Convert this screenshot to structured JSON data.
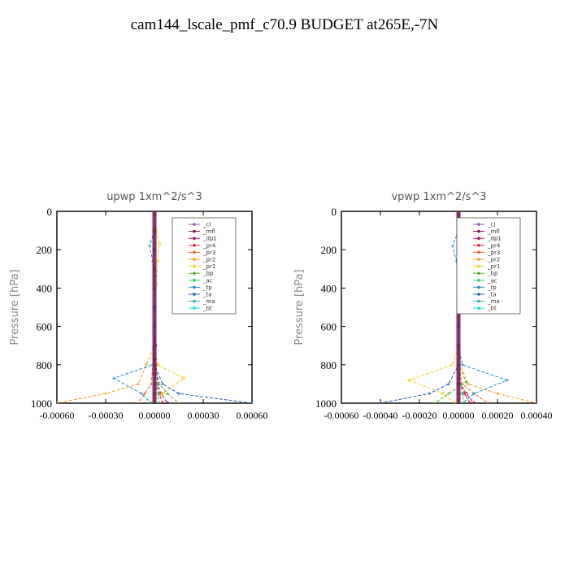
{
  "figure": {
    "title": "cam144_lscale_pmf_c70.9  BUDGET at265E,-7N"
  },
  "chart_data": [
    {
      "type": "line",
      "title": "upwp   1xm^2/s^3",
      "ylabel": "Pressure [hPa]",
      "xlabel": "",
      "xlim": [
        -0.0006,
        0.0006
      ],
      "ylim": [
        1000,
        0
      ],
      "xticks": [
        "-0.00060",
        "-0.00030",
        "0.00000",
        "0.00030",
        "0.00060"
      ],
      "xtick_values": [
        -0.0006,
        -0.0003,
        0,
        0.0003,
        0.0006
      ],
      "yticks": [
        "0",
        "200",
        "400",
        "600",
        "800",
        "1000"
      ],
      "ytick_values": [
        0,
        200,
        400,
        600,
        800,
        1000
      ],
      "legend_position": "top-right",
      "series": [
        {
          "name": "_cl",
          "color": "#8a5cc4",
          "marker": "circle",
          "x": [
            0,
            0,
            0,
            0,
            0,
            0,
            0,
            0,
            0,
            0,
            0,
            0
          ],
          "y": [
            0,
            100,
            200,
            300,
            400,
            500,
            600,
            700,
            800,
            900,
            950,
            1000
          ]
        },
        {
          "name": "_mfl",
          "color": "#7a1050",
          "marker": "star",
          "x": [
            0,
            0,
            0,
            0,
            0,
            0,
            0,
            0,
            0,
            0,
            0,
            0
          ],
          "y": [
            0,
            100,
            200,
            300,
            400,
            500,
            600,
            700,
            800,
            900,
            950,
            1000
          ]
        },
        {
          "name": "_dp1",
          "color": "#b0106a",
          "marker": "circle",
          "x": [
            0,
            0,
            0,
            0,
            0,
            0,
            0,
            5e-06,
            1e-05,
            2e-05,
            4e-05,
            8e-05
          ],
          "y": [
            0,
            100,
            200,
            300,
            400,
            500,
            600,
            700,
            800,
            900,
            950,
            1000
          ]
        },
        {
          "name": "_pr4",
          "color": "#e0203a",
          "marker": "circle",
          "x": [
            0,
            0,
            0,
            0,
            0,
            0,
            0,
            0,
            5e-06,
            1e-05,
            3e-05,
            5e-05
          ],
          "y": [
            0,
            100,
            200,
            300,
            400,
            500,
            600,
            700,
            800,
            900,
            950,
            1000
          ]
        },
        {
          "name": "_pr3",
          "color": "#f0602a",
          "marker": "star",
          "x": [
            0,
            0,
            0,
            0,
            0,
            0,
            0,
            0,
            -1e-05,
            -2e-05,
            -6e-05,
            -0.0001
          ],
          "y": [
            0,
            100,
            200,
            300,
            400,
            500,
            600,
            700,
            800,
            900,
            950,
            1000
          ]
        },
        {
          "name": "_pr2",
          "color": "#f0a020",
          "marker": "star",
          "x": [
            0,
            0,
            0,
            0,
            0,
            0,
            0,
            0,
            -5e-05,
            -0.0001,
            -0.0003,
            -0.0006
          ],
          "y": [
            0,
            100,
            200,
            300,
            400,
            500,
            600,
            700,
            800,
            900,
            950,
            1000
          ]
        },
        {
          "name": "_pr1",
          "color": "#f4d020",
          "marker": "circle",
          "x": [
            0,
            1e-05,
            3e-05,
            2e-05,
            1e-05,
            0,
            0,
            0,
            2e-05,
            0.00018,
            5e-05,
            -2e-05
          ],
          "y": [
            0,
            100,
            170,
            260,
            380,
            500,
            600,
            700,
            800,
            870,
            950,
            1000
          ]
        },
        {
          "name": "_bp",
          "color": "#50b030",
          "marker": "star",
          "x": [
            0,
            0,
            0,
            0,
            0,
            0,
            0,
            0,
            0,
            3e-05,
            8e-05,
            0.00015
          ],
          "y": [
            0,
            100,
            200,
            300,
            400,
            500,
            600,
            700,
            800,
            900,
            950,
            1000
          ]
        },
        {
          "name": "_ac",
          "color": "#30d070",
          "marker": "circle",
          "x": [
            0,
            0,
            0,
            0,
            0,
            0,
            0,
            0,
            0,
            1e-05,
            2e-05,
            3e-05
          ],
          "y": [
            0,
            100,
            200,
            300,
            400,
            500,
            600,
            700,
            800,
            900,
            950,
            1000
          ]
        },
        {
          "name": "_tp",
          "color": "#2090d0",
          "marker": "star",
          "x": [
            0,
            0,
            -3e-05,
            -1e-05,
            0,
            0,
            0,
            0,
            -1e-05,
            -0.00025,
            -8e-05,
            -2e-05
          ],
          "y": [
            0,
            100,
            180,
            260,
            380,
            500,
            600,
            700,
            800,
            870,
            950,
            1000
          ]
        },
        {
          "name": "_ta",
          "color": "#2060c0",
          "marker": "star",
          "x": [
            0,
            0,
            0,
            0,
            0,
            0,
            0,
            0,
            0,
            5e-05,
            0.00015,
            0.0006
          ],
          "y": [
            0,
            100,
            200,
            300,
            400,
            500,
            600,
            700,
            800,
            900,
            950,
            1000
          ]
        },
        {
          "name": "_ma",
          "color": "#30b0c0",
          "marker": "dash",
          "x": [
            0,
            0,
            0,
            0,
            0,
            0,
            0,
            0,
            0,
            0,
            0,
            0
          ],
          "y": [
            0,
            100,
            200,
            300,
            400,
            500,
            600,
            700,
            800,
            900,
            950,
            1000
          ]
        },
        {
          "name": "_bt",
          "color": "#20e0e0",
          "marker": "circle",
          "x": [
            0,
            0,
            0,
            0,
            0,
            0,
            0,
            0,
            0,
            0,
            0,
            0
          ],
          "y": [
            0,
            100,
            200,
            300,
            400,
            500,
            600,
            700,
            800,
            900,
            950,
            1000
          ]
        }
      ]
    },
    {
      "type": "line",
      "title": "vpwp   1xm^2/s^3",
      "ylabel": "Pressure [hPa]",
      "xlabel": "",
      "xlim": [
        -0.0006,
        0.0004
      ],
      "ylim": [
        1000,
        0
      ],
      "xticks": [
        "-0.00060",
        "-0.00040",
        "-0.00020",
        "0.00000",
        "0.00020",
        "0.00040"
      ],
      "xtick_values": [
        -0.0006,
        -0.0004,
        -0.0002,
        0,
        0.0002,
        0.0004
      ],
      "yticks": [
        "0",
        "200",
        "400",
        "600",
        "800",
        "1000"
      ],
      "ytick_values": [
        0,
        200,
        400,
        600,
        800,
        1000
      ],
      "legend_position": "top-right",
      "series": [
        {
          "name": "_cl",
          "color": "#8a5cc4",
          "marker": "circle",
          "x": [
            0,
            0,
            0,
            0,
            0,
            0,
            0,
            0,
            0,
            0,
            0,
            0
          ],
          "y": [
            0,
            100,
            200,
            300,
            400,
            500,
            600,
            700,
            800,
            900,
            950,
            1000
          ]
        },
        {
          "name": "_mfl",
          "color": "#7a1050",
          "marker": "star",
          "x": [
            0,
            0,
            0,
            0,
            0,
            0,
            0,
            0,
            0,
            0,
            0,
            0
          ],
          "y": [
            0,
            100,
            200,
            300,
            400,
            500,
            600,
            700,
            800,
            900,
            950,
            1000
          ]
        },
        {
          "name": "_dp1",
          "color": "#b0106a",
          "marker": "circle",
          "x": [
            0,
            0,
            0,
            0,
            0,
            0,
            0,
            0,
            0,
            1e-05,
            4e-05,
            8e-05
          ],
          "y": [
            0,
            100,
            200,
            300,
            400,
            500,
            600,
            700,
            800,
            900,
            950,
            1000
          ]
        },
        {
          "name": "_pr4",
          "color": "#e0203a",
          "marker": "circle",
          "x": [
            0,
            0,
            0,
            0,
            0,
            0,
            0,
            0,
            0,
            1e-05,
            3e-05,
            6e-05
          ],
          "y": [
            0,
            100,
            200,
            300,
            400,
            500,
            600,
            700,
            800,
            900,
            950,
            1000
          ]
        },
        {
          "name": "_pr3",
          "color": "#f0602a",
          "marker": "star",
          "x": [
            0,
            0,
            0,
            0,
            0,
            0,
            0,
            0,
            0,
            2e-05,
            8e-05,
            0.00015
          ],
          "y": [
            0,
            100,
            200,
            300,
            400,
            500,
            600,
            700,
            800,
            900,
            950,
            1000
          ]
        },
        {
          "name": "_pr2",
          "color": "#f0a020",
          "marker": "star",
          "x": [
            0,
            0,
            0,
            0,
            0,
            0,
            0,
            0,
            1e-05,
            5e-05,
            0.0002,
            0.0004
          ],
          "y": [
            0,
            100,
            200,
            300,
            400,
            500,
            600,
            700,
            800,
            900,
            950,
            1000
          ]
        },
        {
          "name": "_pr1",
          "color": "#f4d020",
          "marker": "circle",
          "x": [
            0,
            1e-05,
            3e-05,
            2e-05,
            1e-05,
            0,
            0,
            0,
            -3e-05,
            -0.00025,
            -8e-05,
            -2e-05
          ],
          "y": [
            0,
            100,
            170,
            260,
            380,
            500,
            600,
            700,
            800,
            880,
            950,
            1000
          ]
        },
        {
          "name": "_bp",
          "color": "#50b030",
          "marker": "star",
          "x": [
            0,
            0,
            0,
            0,
            0,
            0,
            0,
            0,
            0,
            4e-05,
            -5e-05,
            -0.00012
          ],
          "y": [
            0,
            100,
            200,
            300,
            400,
            500,
            600,
            700,
            800,
            890,
            950,
            1000
          ]
        },
        {
          "name": "_ac",
          "color": "#30d070",
          "marker": "circle",
          "x": [
            0,
            0,
            0,
            0,
            0,
            0,
            0,
            0,
            0,
            1e-05,
            2e-05,
            3e-05
          ],
          "y": [
            0,
            100,
            200,
            300,
            400,
            500,
            600,
            700,
            800,
            900,
            950,
            1000
          ]
        },
        {
          "name": "_tp",
          "color": "#2090d0",
          "marker": "star",
          "x": [
            0,
            0,
            -3e-05,
            -1e-05,
            0,
            0,
            0,
            0,
            2e-05,
            0.00025,
            8e-05,
            2e-05
          ],
          "y": [
            0,
            100,
            180,
            260,
            380,
            500,
            600,
            700,
            800,
            880,
            950,
            1000
          ]
        },
        {
          "name": "_ta",
          "color": "#2060c0",
          "marker": "star",
          "x": [
            0,
            0,
            0,
            0,
            0,
            0,
            0,
            0,
            0,
            -5e-05,
            -0.00015,
            -0.0004
          ],
          "y": [
            0,
            100,
            200,
            300,
            400,
            500,
            600,
            700,
            800,
            900,
            950,
            1000
          ]
        },
        {
          "name": "_ma",
          "color": "#30b0c0",
          "marker": "dash",
          "x": [
            0,
            0,
            0,
            0,
            0,
            0,
            0,
            0,
            0,
            0,
            0,
            0
          ],
          "y": [
            0,
            100,
            200,
            300,
            400,
            500,
            600,
            700,
            800,
            900,
            950,
            1000
          ]
        },
        {
          "name": "_bt",
          "color": "#20e0e0",
          "marker": "circle",
          "x": [
            0,
            0,
            0,
            0,
            0,
            0,
            0,
            0,
            0,
            0,
            0,
            0
          ],
          "y": [
            0,
            100,
            200,
            300,
            400,
            500,
            600,
            700,
            800,
            900,
            950,
            1000
          ]
        }
      ]
    }
  ]
}
